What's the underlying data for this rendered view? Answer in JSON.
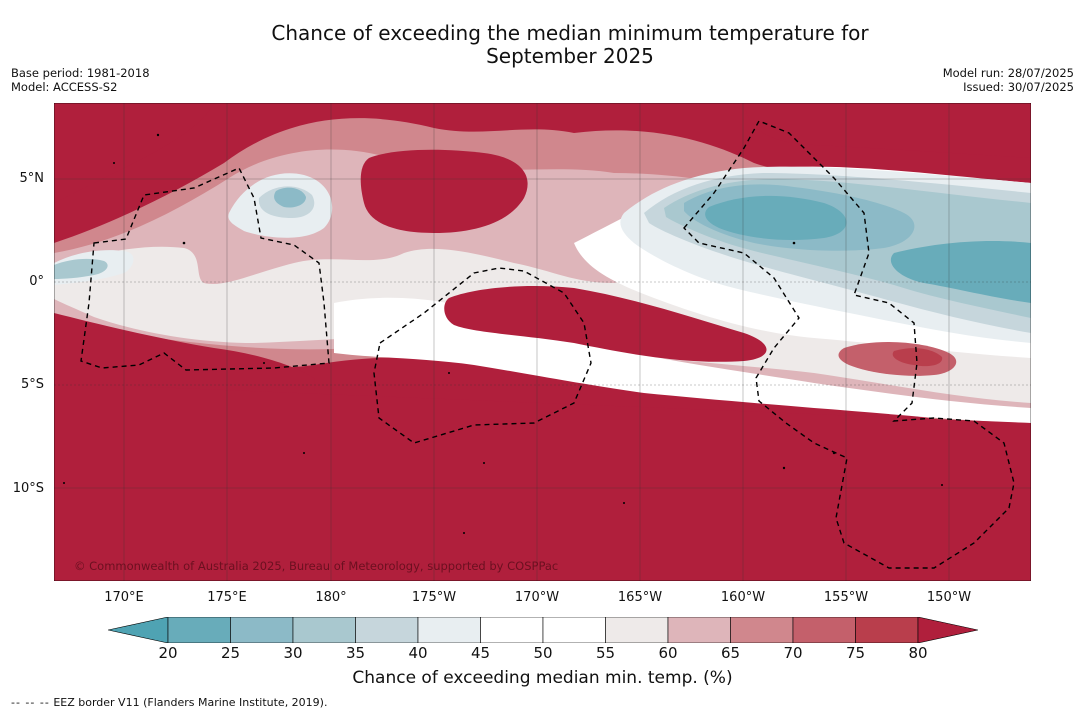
{
  "title_line1": "Chance of exceeding the median minimum temperature for",
  "title_line2": "September 2025",
  "meta_left": {
    "base_period": "Base period: 1981-2018",
    "model": "Model: ACCESS-S2"
  },
  "meta_right": {
    "model_run": "Model run: 28/07/2025",
    "issued": "Issued: 30/07/2025"
  },
  "copyright": "© Commonwealth of Australia 2025, Bureau of Meteorology, supported by COSPPac",
  "lat_labels": [
    "5°N",
    "0°",
    "5°S",
    "10°S"
  ],
  "lon_labels": [
    "170°E",
    "175°E",
    "180°",
    "175°W",
    "170°W",
    "165°W",
    "160°W",
    "155°W",
    "150°W"
  ],
  "colorbar": {
    "ticks": [
      "20",
      "25",
      "30",
      "35",
      "40",
      "45",
      "50",
      "55",
      "60",
      "65",
      "70",
      "75",
      "80"
    ],
    "colors": [
      "#68acba",
      "#8cbac7",
      "#a9c8cf",
      "#c6d6dc",
      "#e8eef1",
      "#ffffff",
      "#ffffff",
      "#eeeae9",
      "#deb5ba",
      "#d0878d",
      "#c4606b",
      "#b93e4c"
    ],
    "under_color": "#4fa3b3",
    "over_color": "#b01f3c",
    "label": "Chance of exceeding median min. temp. (%)"
  },
  "footnote": {
    "dashes": "-- -- --",
    "text": "EEZ border V11 (Flanders Marine Institute, 2019)."
  }
}
